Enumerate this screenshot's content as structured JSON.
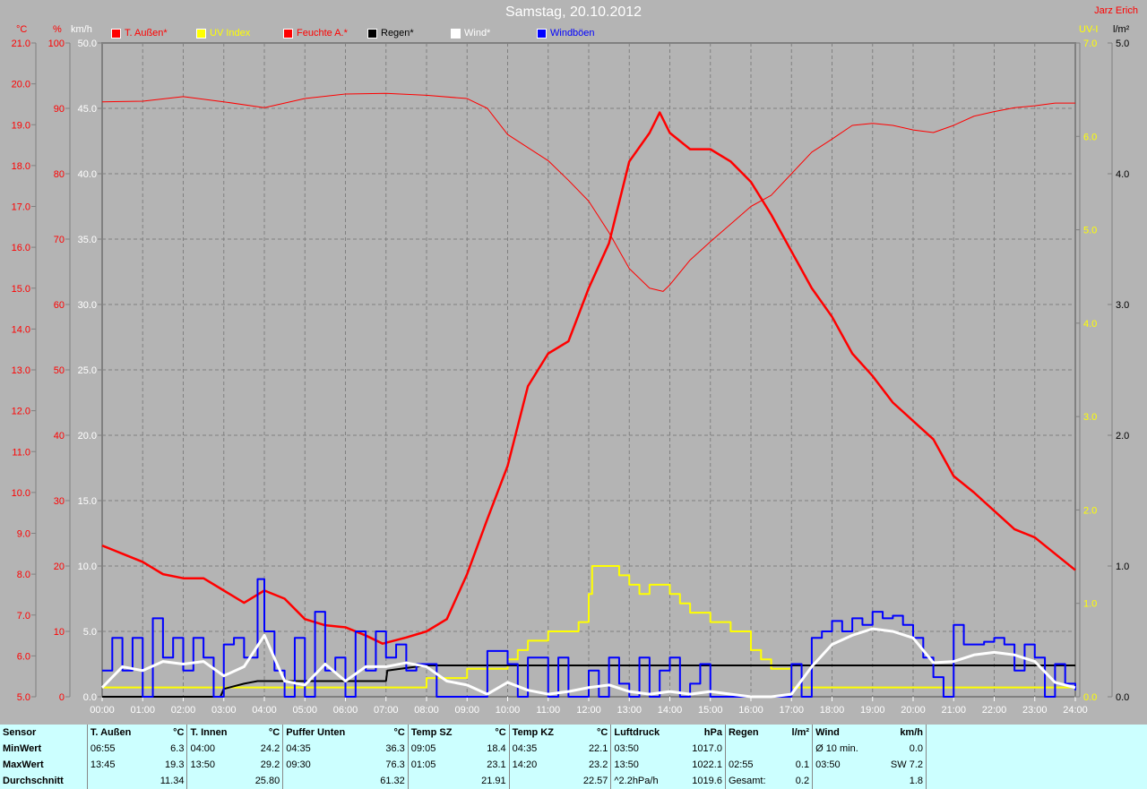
{
  "header": {
    "title": "Samstag, 20.10.2012",
    "author": "Jarz Erich"
  },
  "units": {
    "temp": "°C",
    "hum": "%",
    "wind": "km/h",
    "uv": "UV-I",
    "rain": "l/m²"
  },
  "legend": [
    {
      "label": "T. Außen*",
      "color": "#ff0000"
    },
    {
      "label": "UV Index",
      "color": "#ffff00"
    },
    {
      "label": "Feuchte A.*",
      "color": "#ff0000"
    },
    {
      "label": "Regen*",
      "color": "#000000"
    },
    {
      "label": "Wind*",
      "color": "#ffffff"
    },
    {
      "label": "Windböen",
      "color": "#0000ff"
    }
  ],
  "chart_data": {
    "type": "line",
    "title": "Samstag, 20.10.2012",
    "x_ticks": [
      "00:00",
      "01:00",
      "02:00",
      "03:00",
      "04:00",
      "05:00",
      "06:00",
      "07:00",
      "08:00",
      "09:00",
      "10:00",
      "11:00",
      "12:00",
      "13:00",
      "14:00",
      "15:00",
      "16:00",
      "17:00",
      "18:00",
      "19:00",
      "20:00",
      "21:00",
      "22:00",
      "23:00",
      "24:00"
    ],
    "axes": {
      "temp": {
        "unit": "°C",
        "range": [
          5,
          21
        ],
        "ticks": [
          "5.0",
          "6.0",
          "7.0",
          "8.0",
          "9.0",
          "10.0",
          "11.0",
          "12.0",
          "13.0",
          "14.0",
          "15.0",
          "16.0",
          "17.0",
          "18.0",
          "19.0",
          "20.0",
          "21.0"
        ],
        "color": "#ff0000"
      },
      "hum": {
        "unit": "%",
        "range": [
          0,
          100
        ],
        "ticks": [
          "0",
          "10",
          "20",
          "30",
          "40",
          "50",
          "60",
          "70",
          "80",
          "90",
          "100"
        ],
        "color": "#ff0000"
      },
      "wind": {
        "unit": "km/h",
        "range": [
          0,
          50
        ],
        "ticks": [
          "0.0",
          "5.0",
          "10.0",
          "15.0",
          "20.0",
          "25.0",
          "30.0",
          "35.0",
          "40.0",
          "45.0",
          "50.0"
        ],
        "color": "#ffffff"
      },
      "uv": {
        "unit": "UV-I",
        "range": [
          0,
          7
        ],
        "ticks": [
          "0.0",
          "1.0",
          "2.0",
          "3.0",
          "4.0",
          "5.0",
          "6.0",
          "7.0"
        ],
        "color": "#ffff00"
      },
      "rain": {
        "unit": "l/m²",
        "range": [
          0,
          5
        ],
        "ticks": [
          "0.0",
          "1.0",
          "2.0",
          "3.0",
          "4.0",
          "5.0"
        ],
        "color": "#000000"
      }
    },
    "grid": true,
    "legend_placement": "top",
    "series": [
      {
        "name": "T. Außen*",
        "axis": "temp",
        "color": "#ff0000",
        "width": 2.5,
        "step": false,
        "x": [
          "00:00",
          "00:30",
          "01:00",
          "01:30",
          "02:00",
          "02:30",
          "03:00",
          "03:30",
          "04:00",
          "04:30",
          "05:00",
          "05:30",
          "06:00",
          "06:30",
          "06:55",
          "07:30",
          "08:00",
          "08:30",
          "09:00",
          "09:30",
          "10:00",
          "10:30",
          "11:00",
          "11:30",
          "12:00",
          "12:30",
          "13:00",
          "13:30",
          "13:45",
          "14:00",
          "14:30",
          "15:00",
          "15:30",
          "16:00",
          "16:30",
          "17:00",
          "17:30",
          "18:00",
          "18:30",
          "19:00",
          "19:30",
          "20:00",
          "20:30",
          "21:00",
          "21:30",
          "22:00",
          "22:30",
          "23:00",
          "23:30",
          "24:00"
        ],
        "y": [
          8.7,
          8.5,
          8.3,
          8.0,
          7.9,
          7.9,
          7.6,
          7.3,
          7.6,
          7.4,
          6.9,
          6.75,
          6.7,
          6.5,
          6.3,
          6.45,
          6.6,
          6.9,
          8.0,
          9.35,
          10.65,
          12.6,
          13.4,
          13.7,
          15.0,
          16.1,
          18.1,
          18.8,
          19.3,
          18.8,
          18.4,
          18.4,
          18.1,
          17.6,
          16.8,
          15.9,
          15.0,
          14.3,
          13.4,
          12.85,
          12.2,
          11.75,
          11.3,
          10.4,
          10.0,
          9.55,
          9.1,
          8.9,
          8.5,
          8.1
        ]
      },
      {
        "name": "Feuchte A.*",
        "axis": "hum",
        "color": "#ff0000",
        "width": 1,
        "step": false,
        "x": [
          "00:00",
          "01:00",
          "02:00",
          "03:00",
          "04:00",
          "05:00",
          "06:00",
          "07:00",
          "08:00",
          "09:00",
          "09:30",
          "10:00",
          "10:30",
          "11:00",
          "11:30",
          "12:00",
          "12:30",
          "13:00",
          "13:30",
          "13:50",
          "14:00",
          "14:30",
          "15:00",
          "15:30",
          "16:00",
          "16:30",
          "17:00",
          "17:30",
          "18:00",
          "18:30",
          "19:00",
          "19:30",
          "20:00",
          "20:30",
          "21:00",
          "21:30",
          "22:00",
          "22:30",
          "23:00",
          "23:30",
          "24:00"
        ],
        "y": [
          91,
          91.1,
          91.8,
          91,
          90.1,
          91.5,
          92.2,
          92.3,
          92,
          91.5,
          90,
          86,
          84,
          82,
          79,
          75.8,
          71,
          65.5,
          62.5,
          62,
          63,
          66.8,
          69.6,
          72.3,
          75,
          76.7,
          80,
          83.3,
          85.3,
          87.4,
          87.7,
          87.4,
          86.7,
          86.3,
          87.4,
          88.8,
          89.5,
          90.1,
          90.4,
          90.8,
          90.8
        ]
      },
      {
        "name": "UV Index",
        "axis": "uv",
        "color": "#ffff00",
        "width": 2,
        "step": true,
        "x": [
          "00:00",
          "08:00",
          "09:00",
          "10:00",
          "10:15",
          "10:30",
          "11:00",
          "11:45",
          "12:00",
          "12:05",
          "12:45",
          "13:00",
          "13:15",
          "13:30",
          "14:00",
          "14:15",
          "14:30",
          "15:00",
          "15:30",
          "16:00",
          "16:15",
          "16:30",
          "17:00",
          "24:00"
        ],
        "y": [
          0.1,
          0.2,
          0.3,
          0.4,
          0.5,
          0.6,
          0.7,
          0.8,
          1.1,
          1.4,
          1.3,
          1.2,
          1.1,
          1.2,
          1.1,
          1.0,
          0.9,
          0.8,
          0.7,
          0.5,
          0.4,
          0.3,
          0.1,
          0.1
        ]
      },
      {
        "name": "Regen*",
        "axis": "rain",
        "color": "#000000",
        "width": 2,
        "step": false,
        "x": [
          "00:00",
          "02:55",
          "03:00",
          "03:30",
          "03:50",
          "07:00",
          "07:02",
          "07:30",
          "08:00",
          "24:00"
        ],
        "y": [
          0,
          0,
          0.06,
          0.1,
          0.12,
          0.12,
          0.2,
          0.22,
          0.24,
          0.24
        ]
      },
      {
        "name": "Windböen",
        "axis": "wind",
        "color": "#0000ff",
        "width": 2,
        "step": true,
        "x": [
          "00:00",
          "00:15",
          "00:30",
          "00:45",
          "01:00",
          "01:15",
          "01:30",
          "01:45",
          "02:00",
          "02:15",
          "02:30",
          "02:45",
          "03:00",
          "03:15",
          "03:30",
          "03:50",
          "04:00",
          "04:15",
          "04:30",
          "04:45",
          "05:00",
          "05:15",
          "05:30",
          "05:45",
          "06:00",
          "06:15",
          "06:30",
          "06:45",
          "07:00",
          "07:15",
          "07:30",
          "07:45",
          "08:00",
          "08:15",
          "09:00",
          "09:30",
          "10:00",
          "10:15",
          "10:30",
          "11:00",
          "11:15",
          "11:30",
          "12:00",
          "12:15",
          "12:30",
          "12:45",
          "13:00",
          "13:15",
          "13:30",
          "13:45",
          "14:00",
          "14:15",
          "14:30",
          "14:45",
          "15:00",
          "17:00",
          "17:15",
          "17:30",
          "17:45",
          "18:00",
          "18:15",
          "18:30",
          "18:45",
          "19:00",
          "19:15",
          "19:30",
          "19:45",
          "20:00",
          "20:15",
          "20:30",
          "20:45",
          "21:00",
          "21:15",
          "21:30",
          "21:45",
          "22:00",
          "22:15",
          "22:30",
          "22:45",
          "23:00",
          "23:15",
          "23:30",
          "23:45",
          "24:00"
        ],
        "y": [
          2,
          4.5,
          2,
          4.5,
          0,
          6,
          3,
          4.5,
          2,
          4.5,
          3,
          0,
          4,
          4.5,
          3,
          9,
          5,
          2,
          0,
          4.5,
          0,
          6.5,
          2,
          3,
          0,
          5,
          2,
          5,
          3,
          4,
          2,
          2.5,
          2.5,
          0,
          0,
          3.5,
          2.5,
          0,
          3,
          0,
          3,
          0,
          2,
          0,
          3,
          1,
          0,
          3,
          0,
          2,
          3,
          0,
          1,
          2.5,
          0,
          2.5,
          0,
          4.5,
          5,
          5.8,
          5,
          6,
          5.5,
          6.5,
          6,
          6.2,
          5.5,
          4.5,
          3,
          1.5,
          0,
          5.5,
          4,
          4,
          4.2,
          4.5,
          4,
          2,
          4,
          3,
          0,
          2.5,
          1,
          0.5
        ]
      },
      {
        "name": "Wind*",
        "axis": "wind",
        "color": "#ffffff",
        "width": 3,
        "step": false,
        "x": [
          "00:00",
          "00:30",
          "01:00",
          "01:30",
          "02:00",
          "02:30",
          "03:00",
          "03:30",
          "04:00",
          "04:30",
          "05:00",
          "05:30",
          "06:00",
          "06:30",
          "07:00",
          "07:30",
          "08:00",
          "08:30",
          "09:00",
          "09:30",
          "10:00",
          "10:30",
          "11:00",
          "11:30",
          "12:00",
          "12:30",
          "13:00",
          "13:30",
          "14:00",
          "14:30",
          "15:00",
          "15:30",
          "16:00",
          "16:30",
          "17:00",
          "17:30",
          "18:00",
          "18:30",
          "19:00",
          "19:30",
          "20:00",
          "20:30",
          "21:00",
          "21:30",
          "22:00",
          "22:30",
          "23:00",
          "23:30",
          "24:00"
        ],
        "y": [
          0.7,
          2.3,
          2,
          2.7,
          2.5,
          2.7,
          1.6,
          2.3,
          4.7,
          1.2,
          0.9,
          2.5,
          1.2,
          2.3,
          2.3,
          2.6,
          2.3,
          1.2,
          0.9,
          0.2,
          1.1,
          0.5,
          0.2,
          0.4,
          0.7,
          0.9,
          0.4,
          0.2,
          0.4,
          0.2,
          0.4,
          0.2,
          0,
          0,
          0.2,
          2.3,
          4,
          4.7,
          5.2,
          5,
          4.5,
          2.6,
          2.7,
          3.2,
          3.4,
          3.2,
          2.7,
          1.1,
          0.7
        ]
      }
    ]
  },
  "stats": {
    "rows": [
      [
        "Sensor",
        "T. Außen",
        "°C",
        "T. Innen",
        "°C",
        "Puffer Unten",
        "°C",
        "Temp SZ",
        "°C",
        "Temp KZ",
        "°C",
        "Luftdruck",
        "hPa",
        "Regen",
        "l/m²",
        "Wind",
        "km/h"
      ],
      [
        "MinWert",
        "06:55",
        "6.3",
        "04:00",
        "24.2",
        "04:35",
        "36.3",
        "09:05",
        "18.4",
        "04:35",
        "22.1",
        "03:50",
        "1017.0",
        "",
        "",
        "Ø 10 min.",
        "0.0"
      ],
      [
        "MaxWert",
        "13:45",
        "19.3",
        "13:50",
        "29.2",
        "09:30",
        "76.3",
        "01:05",
        "23.1",
        "14:20",
        "23.2",
        "13:50",
        "1022.1",
        "02:55",
        "0.1",
        "03:50",
        "SW 7.2"
      ],
      [
        "Durchschnitt",
        "",
        "11.34",
        "",
        "25.80",
        "",
        "61.32",
        "",
        "21.91",
        "",
        "22.57",
        "^2.2hPa/h",
        "1019.6",
        "Gesamt:",
        "0.2",
        "",
        "1.8"
      ]
    ]
  }
}
